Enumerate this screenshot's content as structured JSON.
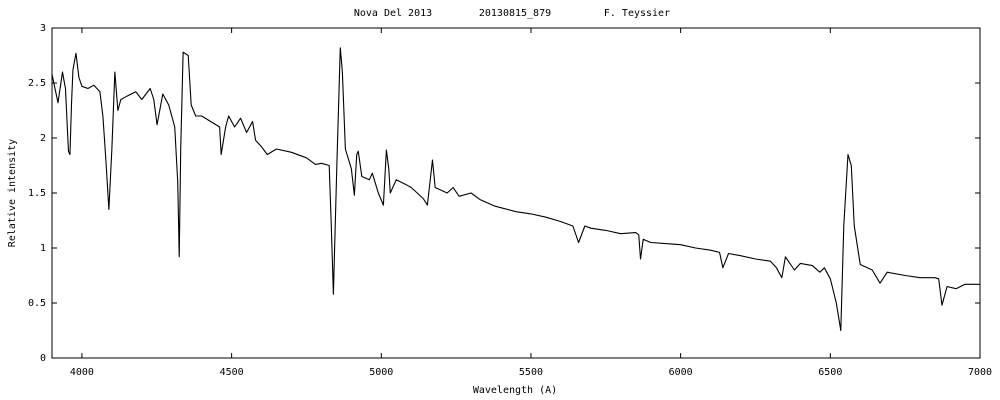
{
  "chart_data": {
    "type": "line",
    "title_parts": [
      "Nova Del 2013",
      "20130815_879",
      "F. Teyssier"
    ],
    "xlabel": "Wavelength (A)",
    "ylabel": "Relative intensity",
    "xlim": [
      3900,
      7000
    ],
    "xticks": [
      4000,
      4500,
      5000,
      5500,
      6000,
      6500,
      7000
    ],
    "ylim": [
      0,
      3
    ],
    "yticks": [
      0,
      0.5,
      1,
      1.5,
      2,
      2.5,
      3
    ],
    "x": [
      3900,
      3910,
      3920,
      3935,
      3945,
      3955,
      3960,
      3965,
      3970,
      3980,
      3990,
      4000,
      4020,
      4040,
      4060,
      4070,
      4080,
      4090,
      4100,
      4110,
      4120,
      4130,
      4150,
      4180,
      4200,
      4228,
      4240,
      4251,
      4270,
      4290,
      4310,
      4320,
      4325,
      4330,
      4338,
      4355,
      4365,
      4380,
      4400,
      4430,
      4460,
      4465,
      4480,
      4490,
      4510,
      4530,
      4550,
      4570,
      4580,
      4600,
      4619,
      4650,
      4700,
      4750,
      4780,
      4800,
      4826,
      4833,
      4840,
      4852,
      4863,
      4870,
      4880,
      4900,
      4910,
      4918,
      4923,
      4935,
      4960,
      4970,
      4990,
      5007,
      5017,
      5025,
      5030,
      5050,
      5080,
      5100,
      5140,
      5154,
      5171,
      5180,
      5220,
      5240,
      5260,
      5300,
      5330,
      5380,
      5450,
      5500,
      5550,
      5600,
      5640,
      5659,
      5680,
      5700,
      5750,
      5800,
      5850,
      5860,
      5866,
      5875,
      5900,
      5950,
      6000,
      6050,
      6100,
      6130,
      6141,
      6160,
      6200,
      6250,
      6300,
      6320,
      6338,
      6350,
      6380,
      6400,
      6440,
      6465,
      6480,
      6500,
      6520,
      6535,
      6545,
      6559,
      6570,
      6580,
      6600,
      6640,
      6666,
      6690,
      6750,
      6800,
      6850,
      6862,
      6873,
      6890,
      6920,
      6950,
      7000
    ],
    "series": [
      {
        "color": "#000000",
        "values": [
          2.58,
          2.45,
          2.32,
          2.6,
          2.45,
          1.88,
          1.85,
          2.3,
          2.62,
          2.77,
          2.55,
          2.47,
          2.45,
          2.48,
          2.42,
          2.2,
          1.8,
          1.35,
          1.9,
          2.6,
          2.25,
          2.35,
          2.38,
          2.42,
          2.35,
          2.45,
          2.35,
          2.12,
          2.4,
          2.3,
          2.1,
          1.6,
          0.92,
          1.9,
          2.78,
          2.75,
          2.3,
          2.2,
          2.2,
          2.15,
          2.1,
          1.85,
          2.1,
          2.2,
          2.1,
          2.18,
          2.05,
          2.15,
          1.98,
          1.92,
          1.85,
          1.9,
          1.87,
          1.82,
          1.76,
          1.77,
          1.75,
          1.2,
          0.58,
          1.8,
          2.82,
          2.6,
          1.9,
          1.72,
          1.48,
          1.85,
          1.88,
          1.65,
          1.62,
          1.68,
          1.5,
          1.39,
          1.89,
          1.72,
          1.5,
          1.62,
          1.58,
          1.55,
          1.45,
          1.39,
          1.8,
          1.55,
          1.5,
          1.55,
          1.47,
          1.5,
          1.44,
          1.38,
          1.33,
          1.31,
          1.28,
          1.24,
          1.2,
          1.05,
          1.2,
          1.18,
          1.16,
          1.13,
          1.14,
          1.12,
          0.9,
          1.08,
          1.05,
          1.04,
          1.03,
          1.0,
          0.98,
          0.96,
          0.82,
          0.95,
          0.93,
          0.9,
          0.88,
          0.82,
          0.73,
          0.92,
          0.8,
          0.86,
          0.84,
          0.78,
          0.82,
          0.72,
          0.5,
          0.25,
          1.2,
          1.85,
          1.75,
          1.2,
          0.85,
          0.8,
          0.68,
          0.78,
          0.75,
          0.73,
          0.73,
          0.72,
          0.48,
          0.65,
          0.63,
          0.67,
          0.67
        ]
      }
    ]
  }
}
